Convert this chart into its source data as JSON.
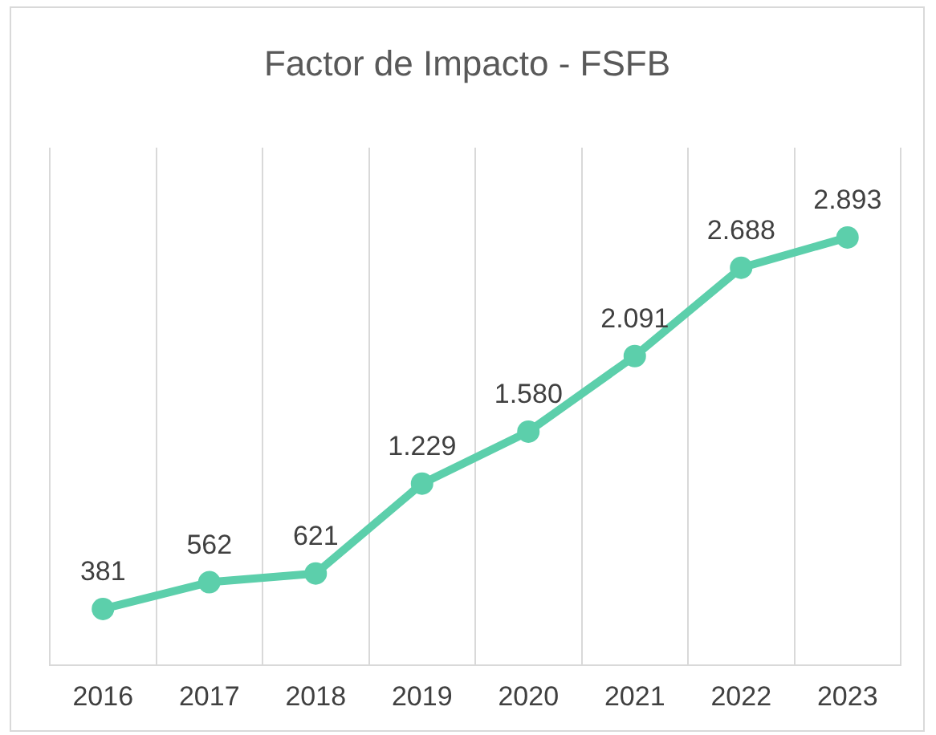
{
  "chart_data": {
    "type": "line",
    "title": "Factor de Impacto - FSFB",
    "categories": [
      "2016",
      "2017",
      "2018",
      "2019",
      "2020",
      "2021",
      "2022",
      "2023"
    ],
    "series": [
      {
        "color": "#5ccfab",
        "values": [
          381,
          562,
          621,
          1229,
          1580,
          2091,
          2688,
          2893
        ],
        "value_labels": [
          "381",
          "562",
          "621",
          "1.229",
          "1.580",
          "2.091",
          "2.688",
          "2.893"
        ]
      }
    ],
    "ylim": [
      0,
      3500
    ],
    "grid": "x",
    "legend": false,
    "tick_labels": "x",
    "marker": "circle",
    "line_style": "solid"
  }
}
